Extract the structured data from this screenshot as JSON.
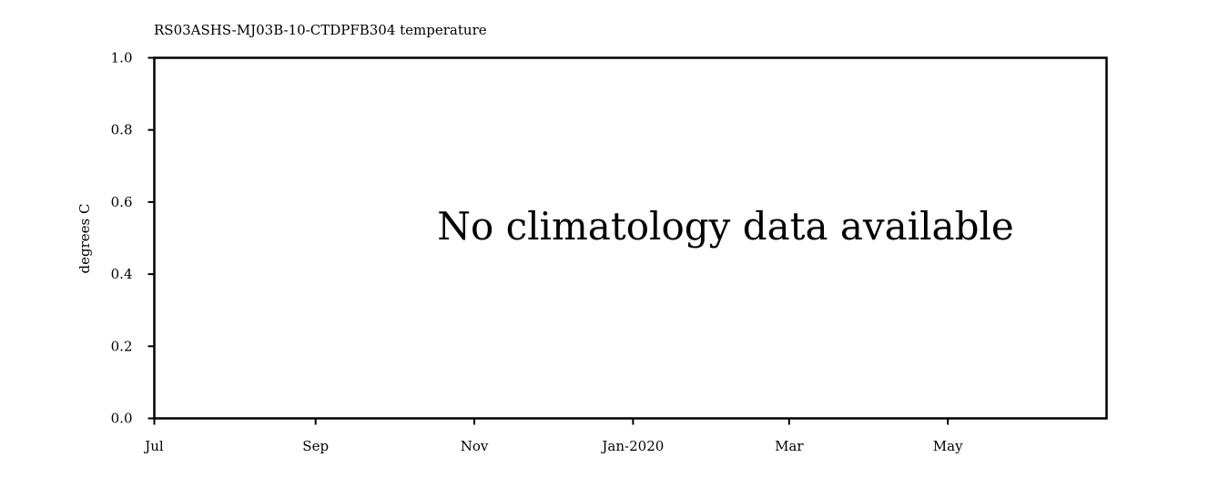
{
  "chart_data": {
    "type": "line",
    "title": "RS03ASHS-MJ03B-10-CTDPFB304 temperature",
    "xlabel": "",
    "ylabel": "degrees C",
    "ylim": [
      0,
      1
    ],
    "y_ticks": [
      0.0,
      0.2,
      0.4,
      0.6,
      0.8,
      1.0
    ],
    "y_tick_labels": [
      "0.0",
      "0.2",
      "0.4",
      "0.6",
      "0.8",
      "1.0"
    ],
    "xlim": [
      "2019-07-01",
      "2020-07-01"
    ],
    "x_ticks": [
      {
        "label": "Jul",
        "date": "2019-07-01"
      },
      {
        "label": "Sep",
        "date": "2019-09-01"
      },
      {
        "label": "Nov",
        "date": "2019-11-01"
      },
      {
        "label": "Jan-2020",
        "date": "2020-01-01"
      },
      {
        "label": "Mar",
        "date": "2020-03-01"
      },
      {
        "label": "May",
        "date": "2020-05-01"
      }
    ],
    "series": [],
    "grid": false,
    "annotation": "No climatology data available"
  }
}
